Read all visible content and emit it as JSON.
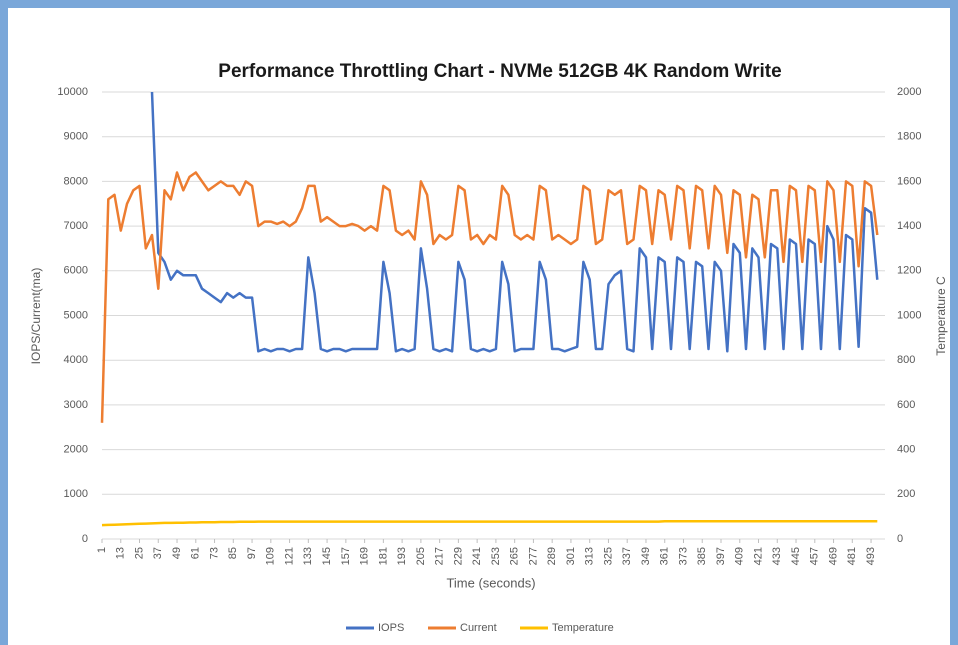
{
  "chart_data": {
    "type": "line",
    "title": "Performance Throttling Chart - NVMe 512GB 4K Random Write",
    "x_label": "Time (seconds)",
    "y_label": "IOPS/Current(ma)",
    "y2_label": "Temperature C",
    "x": [
      1,
      5,
      9,
      13,
      17,
      21,
      25,
      29,
      33,
      37,
      41,
      45,
      49,
      53,
      57,
      61,
      65,
      69,
      73,
      77,
      81,
      85,
      89,
      93,
      97,
      101,
      105,
      109,
      113,
      117,
      121,
      125,
      129,
      133,
      137,
      141,
      145,
      149,
      153,
      157,
      161,
      165,
      169,
      173,
      177,
      181,
      185,
      189,
      193,
      197,
      201,
      205,
      209,
      213,
      217,
      221,
      225,
      229,
      233,
      237,
      241,
      245,
      249,
      253,
      257,
      261,
      265,
      269,
      273,
      277,
      281,
      285,
      289,
      293,
      297,
      301,
      305,
      309,
      313,
      317,
      321,
      325,
      329,
      333,
      337,
      341,
      345,
      349,
      353,
      357,
      361,
      365,
      369,
      373,
      377,
      381,
      385,
      389,
      393,
      397,
      401,
      405,
      409,
      413,
      417,
      421,
      425,
      429,
      433,
      437,
      441,
      445,
      449,
      453,
      457,
      461,
      465,
      469,
      473,
      477,
      481,
      485,
      489,
      493,
      497
    ],
    "xlim": [
      1,
      500
    ],
    "xticks": [
      1,
      13,
      25,
      37,
      49,
      61,
      73,
      85,
      97,
      109,
      121,
      133,
      145,
      157,
      169,
      181,
      193,
      205,
      217,
      229,
      241,
      253,
      265,
      277,
      289,
      301,
      313,
      325,
      337,
      349,
      361,
      373,
      385,
      397,
      409,
      421,
      433,
      445,
      457,
      469,
      481,
      493
    ],
    "ylim": [
      0,
      10000
    ],
    "yticks": [
      0,
      1000,
      2000,
      3000,
      4000,
      5000,
      6000,
      7000,
      8000,
      9000,
      10000
    ],
    "y2lim": [
      0,
      2000
    ],
    "y2ticks": [
      0,
      200,
      400,
      600,
      800,
      1000,
      1200,
      1400,
      1600,
      1800,
      2000
    ],
    "grid": true,
    "legend": "bottom",
    "series": [
      {
        "name": "IOPS",
        "color": "#4472c4",
        "values": [
          null,
          null,
          null,
          null,
          null,
          null,
          null,
          null,
          10000,
          6400,
          6200,
          5800,
          6000,
          5900,
          5900,
          5900,
          5600,
          5500,
          5400,
          5300,
          5500,
          5400,
          5500,
          5400,
          5400,
          4200,
          4250,
          4200,
          4250,
          4250,
          4200,
          4250,
          4250,
          6300,
          5500,
          4250,
          4200,
          4250,
          4250,
          4200,
          4250,
          4250,
          4250,
          4250,
          4250,
          6200,
          5500,
          4200,
          4250,
          4200,
          4250,
          6500,
          5600,
          4250,
          4200,
          4250,
          4200,
          6200,
          5800,
          4250,
          4200,
          4250,
          4200,
          4250,
          6200,
          5700,
          4200,
          4250,
          4250,
          4250,
          6200,
          5800,
          4250,
          4250,
          4200,
          4250,
          4300,
          6200,
          5800,
          4250,
          4250,
          5700,
          5900,
          6000,
          4250,
          4200,
          6500,
          6300,
          4250,
          6300,
          6200,
          4250,
          6300,
          6200,
          4250,
          6200,
          6100,
          4250,
          6200,
          6000,
          4200,
          6600,
          6400,
          4250,
          6500,
          6300,
          4250,
          6600,
          6500,
          4250,
          6700,
          6600,
          4250,
          6700,
          6600,
          4250,
          7000,
          6700,
          4250,
          6800,
          6700,
          4300,
          7400,
          7300,
          5800
        ]
      },
      {
        "name": "Current",
        "color": "#ed7d31",
        "values": [
          2600,
          7600,
          7700,
          6900,
          7500,
          7800,
          7900,
          6500,
          6800,
          5600,
          7800,
          7600,
          8200,
          7800,
          8100,
          8200,
          8000,
          7800,
          7900,
          8000,
          7900,
          7900,
          7700,
          8000,
          7900,
          7000,
          7100,
          7100,
          7050,
          7100,
          7000,
          7100,
          7400,
          7900,
          7900,
          7100,
          7200,
          7100,
          7000,
          7000,
          7050,
          7000,
          6900,
          7000,
          6900,
          7900,
          7800,
          6900,
          6800,
          6900,
          6700,
          8000,
          7700,
          6600,
          6800,
          6700,
          6800,
          7900,
          7800,
          6700,
          6800,
          6600,
          6800,
          6700,
          7900,
          7700,
          6800,
          6700,
          6800,
          6700,
          7900,
          7800,
          6700,
          6800,
          6700,
          6600,
          6700,
          7900,
          7800,
          6600,
          6700,
          7800,
          7700,
          7800,
          6600,
          6700,
          7900,
          7800,
          6600,
          7800,
          7700,
          6700,
          7900,
          7800,
          6500,
          7900,
          7800,
          6500,
          7900,
          7700,
          6400,
          7800,
          7700,
          6300,
          7700,
          7600,
          6300,
          7800,
          7800,
          6200,
          7900,
          7800,
          6200,
          7900,
          7800,
          6200,
          8000,
          7800,
          6200,
          8000,
          7900,
          6100,
          8000,
          7900,
          6800
        ]
      },
      {
        "name": "Temperature",
        "color": "#ffc000",
        "axis": "y2",
        "values": [
          62,
          63,
          64,
          65,
          66,
          67,
          68,
          69,
          70,
          71,
          72,
          72,
          73,
          73,
          74,
          74,
          75,
          75,
          75,
          76,
          76,
          76,
          77,
          77,
          77,
          78,
          78,
          78,
          78,
          78,
          78,
          78,
          78,
          78,
          78,
          78,
          78,
          78,
          78,
          78,
          78,
          78,
          78,
          78,
          78,
          78,
          78,
          78,
          78,
          78,
          78,
          78,
          78,
          78,
          78,
          78,
          78,
          78,
          78,
          78,
          78,
          78,
          78,
          78,
          78,
          78,
          78,
          78,
          78,
          78,
          78,
          78,
          78,
          78,
          78,
          78,
          78,
          78,
          78,
          78,
          78,
          78,
          78,
          78,
          78,
          78,
          78,
          78,
          78,
          78,
          79,
          79,
          79,
          79,
          79,
          79,
          79,
          79,
          79,
          79,
          79,
          79,
          79,
          79,
          79,
          79,
          79,
          79,
          79,
          79,
          79,
          79,
          79,
          79,
          79,
          79,
          79,
          79,
          79,
          79,
          79,
          79,
          79,
          79,
          79
        ]
      }
    ]
  }
}
